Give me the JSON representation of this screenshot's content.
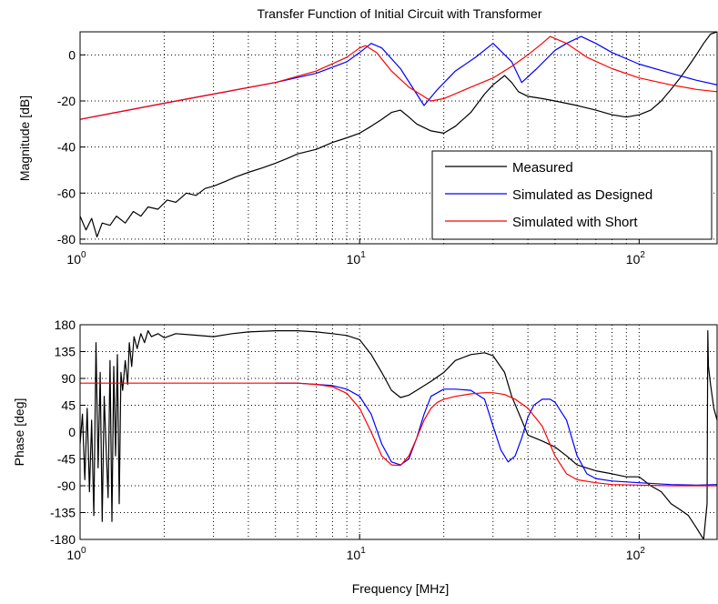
{
  "figure": {
    "title": "Transfer Function of Initial Circuit with Transformer",
    "xlabel": "Frequency [MHz]"
  },
  "colors": {
    "measured": "#000000",
    "designed": "#0000ff",
    "short": "#ff0000",
    "grid": "#000000"
  },
  "chart_data": [
    {
      "type": "line",
      "title": "Transfer Function of Initial Circuit with Transformer",
      "xlabel": "",
      "ylabel": "Magnitude [dB]",
      "xscale": "log",
      "xlim": [
        1,
        190
      ],
      "ylim": [
        -82,
        10
      ],
      "xticks": [
        1,
        10,
        100
      ],
      "xtick_labels": [
        {
          "base": "10",
          "exp": "0"
        },
        {
          "base": "10",
          "exp": "1"
        },
        {
          "base": "10",
          "exp": "2"
        }
      ],
      "yticks": [
        0,
        -20,
        -40,
        -60,
        -80
      ],
      "ytick_labels": [
        "0",
        "-20",
        "-40",
        "-60",
        "-80"
      ],
      "grid": true,
      "legend": "bottom-right",
      "legend_entries": [
        "Measured",
        "Simulated as Designed",
        "Simulated with Short"
      ],
      "series": [
        {
          "name": "Measured",
          "color": "#000000",
          "x": [
            1,
            1.05,
            1.1,
            1.15,
            1.2,
            1.28,
            1.35,
            1.45,
            1.55,
            1.65,
            1.75,
            1.9,
            2.05,
            2.2,
            2.4,
            2.6,
            2.8,
            3,
            3.3,
            3.6,
            4,
            4.5,
            5,
            5.5,
            6,
            7,
            8,
            9,
            10,
            11,
            12,
            13,
            14,
            15,
            16,
            18,
            20,
            22,
            25,
            28,
            30,
            33,
            35,
            37,
            40,
            45,
            50,
            60,
            70,
            80,
            90,
            100,
            110,
            120,
            130,
            140,
            150,
            160,
            170,
            180,
            190
          ],
          "y": [
            -70,
            -76,
            -71,
            -79,
            -73,
            -74,
            -70,
            -73,
            -68,
            -70,
            -66,
            -67,
            -63,
            -64,
            -60,
            -61,
            -58,
            -57,
            -55,
            -53,
            -51,
            -49,
            -47,
            -45,
            -43,
            -41,
            -38,
            -36,
            -34,
            -31,
            -28,
            -25,
            -24,
            -27,
            -30,
            -33,
            -34,
            -31,
            -25,
            -17,
            -13,
            -9,
            -12,
            -16,
            -18,
            -19,
            -20,
            -22,
            -24,
            -26,
            -27,
            -26,
            -24,
            -20,
            -15,
            -10,
            -5,
            0,
            5,
            9,
            10
          ]
        },
        {
          "name": "Simulated as Designed",
          "color": "#0000ff",
          "x": [
            1,
            2,
            3,
            5,
            7,
            9,
            10,
            11,
            12,
            14,
            17,
            19,
            22,
            26,
            30,
            35,
            38,
            43,
            50,
            55,
            62,
            70,
            80,
            100,
            130,
            160,
            190
          ],
          "y": [
            -28,
            -21,
            -17,
            -12,
            -8,
            -3,
            1,
            5,
            3,
            -6,
            -22,
            -15,
            -7,
            -1,
            5,
            -3,
            -12,
            -6,
            2,
            5,
            8,
            5,
            1,
            -4,
            -8,
            -11,
            -13
          ]
        },
        {
          "name": "Simulated with Short",
          "color": "#ff0000",
          "x": [
            1,
            2,
            3,
            5,
            7,
            9,
            10,
            10.5,
            11.5,
            13,
            15,
            18,
            20,
            25,
            30,
            35,
            40,
            45,
            48,
            55,
            65,
            80,
            100,
            130,
            160,
            190
          ],
          "y": [
            -28,
            -21,
            -17,
            -12,
            -7,
            -1,
            3,
            4,
            1,
            -7,
            -14,
            -20,
            -19,
            -14,
            -10,
            -5,
            0,
            5,
            8,
            5,
            -1,
            -6,
            -10,
            -13,
            -15,
            -16
          ]
        }
      ]
    },
    {
      "type": "line",
      "title": "",
      "xlabel": "Frequency [MHz]",
      "ylabel": "Phase [deg]",
      "xscale": "log",
      "xlim": [
        1,
        190
      ],
      "ylim": [
        -180,
        180
      ],
      "xticks": [
        1,
        10,
        100
      ],
      "xtick_labels": [
        {
          "base": "10",
          "exp": "0"
        },
        {
          "base": "10",
          "exp": "1"
        },
        {
          "base": "10",
          "exp": "2"
        }
      ],
      "yticks": [
        180,
        135,
        90,
        45,
        0,
        -45,
        -90,
        -135,
        -180
      ],
      "ytick_labels": [
        "180",
        "135",
        "90",
        "45",
        "0",
        "-45",
        "-90",
        "-135",
        "-180"
      ],
      "grid": true,
      "series": [
        {
          "name": "Measured",
          "color": "#000000",
          "x": [
            1,
            1.02,
            1.04,
            1.06,
            1.08,
            1.1,
            1.12,
            1.14,
            1.16,
            1.18,
            1.2,
            1.22,
            1.24,
            1.26,
            1.28,
            1.3,
            1.32,
            1.34,
            1.36,
            1.38,
            1.4,
            1.42,
            1.45,
            1.48,
            1.5,
            1.53,
            1.56,
            1.6,
            1.65,
            1.7,
            1.75,
            1.8,
            1.9,
            2,
            2.2,
            2.5,
            3,
            3.5,
            4,
            5,
            6,
            7,
            8,
            9,
            10,
            11,
            12,
            13,
            14,
            15,
            16,
            18,
            20,
            22,
            25,
            28,
            30,
            33,
            35,
            38,
            40,
            45,
            50,
            55,
            60,
            70,
            80,
            90,
            100,
            110,
            120,
            130,
            140,
            150,
            160,
            170,
            175,
            176,
            177,
            180,
            185,
            190
          ],
          "y": [
            -20,
            30,
            -80,
            40,
            -100,
            20,
            -140,
            150,
            -60,
            100,
            -150,
            60,
            -30,
            -110,
            120,
            -150,
            110,
            -40,
            130,
            -120,
            100,
            70,
            120,
            80,
            150,
            110,
            160,
            140,
            165,
            150,
            170,
            160,
            165,
            158,
            165,
            163,
            160,
            165,
            168,
            170,
            170,
            168,
            165,
            162,
            155,
            130,
            100,
            70,
            58,
            62,
            70,
            85,
            100,
            120,
            130,
            133,
            128,
            100,
            60,
            20,
            -5,
            -15,
            -25,
            -40,
            -55,
            -65,
            -70,
            -75,
            -75,
            -90,
            -100,
            -120,
            -130,
            -140,
            -160,
            -180,
            -120,
            170,
            110,
            80,
            40,
            20
          ]
        },
        {
          "name": "Simulated as Designed",
          "color": "#0000ff",
          "x": [
            5,
            6,
            7,
            8,
            9,
            10,
            11,
            12,
            13,
            14,
            15,
            16,
            17,
            18,
            20,
            22,
            25,
            28,
            30,
            32,
            34,
            36,
            38,
            40,
            42,
            45,
            48,
            50,
            55,
            60,
            65,
            70,
            80,
            100,
            130,
            160,
            190
          ],
          "y": [
            82,
            82,
            80,
            78,
            72,
            60,
            30,
            -20,
            -50,
            -55,
            -45,
            -10,
            30,
            60,
            72,
            72,
            70,
            55,
            10,
            -30,
            -50,
            -40,
            -10,
            25,
            45,
            55,
            55,
            50,
            20,
            -40,
            -70,
            -78,
            -82,
            -85,
            -88,
            -89,
            -88
          ]
        },
        {
          "name": "Simulated with Short",
          "color": "#ff0000",
          "x": [
            1,
            3,
            5,
            6,
            7,
            8,
            9,
            10,
            11,
            12,
            13,
            14,
            15,
            16,
            17,
            18,
            19,
            20,
            22,
            25,
            28,
            30,
            33,
            36,
            40,
            45,
            50,
            55,
            60,
            70,
            80,
            100,
            130,
            160,
            190
          ],
          "y": [
            82,
            82,
            82,
            82,
            80,
            76,
            65,
            40,
            0,
            -40,
            -55,
            -56,
            -40,
            -10,
            20,
            40,
            50,
            55,
            60,
            64,
            66,
            66,
            63,
            55,
            40,
            10,
            -40,
            -70,
            -80,
            -85,
            -88,
            -89,
            -90,
            -90,
            -90
          ]
        }
      ]
    }
  ]
}
